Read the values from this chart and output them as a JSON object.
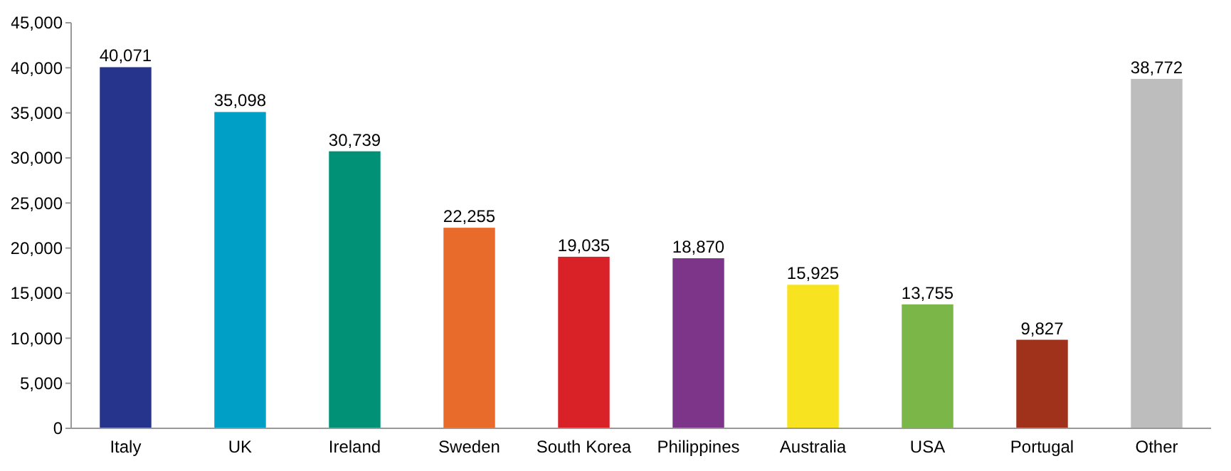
{
  "chart_data": {
    "type": "bar",
    "categories": [
      "Italy",
      "UK",
      "Ireland",
      "Sweden",
      "South Korea",
      "Philippines",
      "Australia",
      "USA",
      "Portugal",
      "Other"
    ],
    "values": [
      40071,
      35098,
      30739,
      22255,
      19035,
      18870,
      15925,
      13755,
      9827,
      38772
    ],
    "value_labels": [
      "40,071",
      "35,098",
      "30,739",
      "22,255",
      "19,035",
      "18,870",
      "15,925",
      "13,755",
      "9,827",
      "38,772"
    ],
    "colors": [
      "#27348b",
      "#00a0c6",
      "#009177",
      "#e96b2b",
      "#d92128",
      "#7c3589",
      "#f7e31f",
      "#7ab648",
      "#a0311a",
      "#bdbdbd"
    ],
    "ylim": [
      0,
      45000
    ],
    "yticks": [
      {
        "value": 0,
        "label": "0"
      },
      {
        "value": 5000,
        "label": "5,000"
      },
      {
        "value": 10000,
        "label": "10,000"
      },
      {
        "value": 15000,
        "label": "15,000"
      },
      {
        "value": 20000,
        "label": "20,000"
      },
      {
        "value": 25000,
        "label": "25,000"
      },
      {
        "value": 30000,
        "label": "30,000"
      },
      {
        "value": 35000,
        "label": "35,000"
      },
      {
        "value": 40000,
        "label": "40,000"
      },
      {
        "value": 45000,
        "label": "45,000"
      }
    ]
  }
}
